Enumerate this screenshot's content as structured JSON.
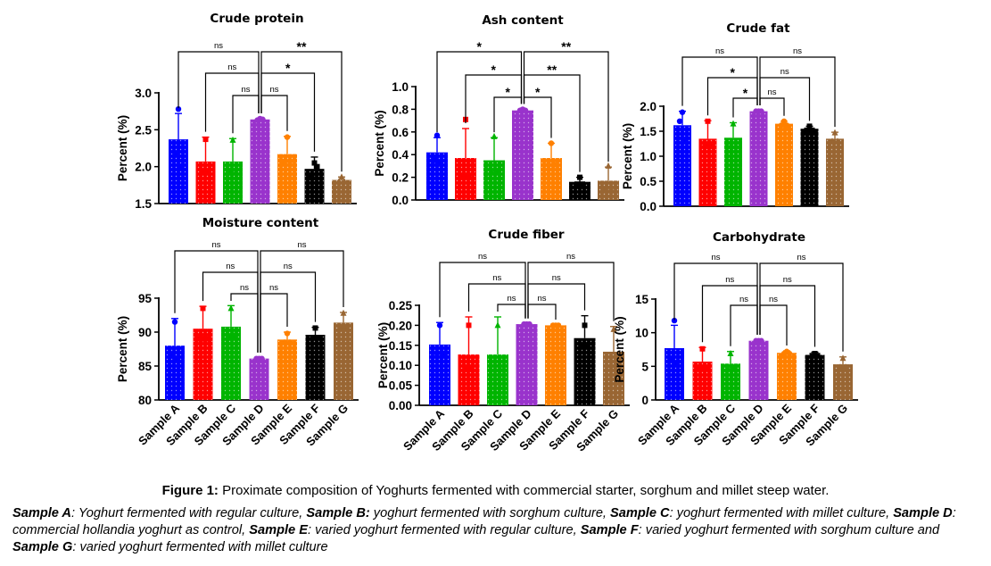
{
  "figure": {
    "caption_label": "Figure 1:",
    "caption_text": " Proximate composition of Yoghurts fermented with commercial starter, sorghum and millet steep water.",
    "legend": [
      {
        "key": "Sample A",
        "sep": ": ",
        "desc": "Yoghurt fermented with regular culture, "
      },
      {
        "key": "Sample B:",
        "sep": " ",
        "desc": "yoghurt fermented with sorghum culture, "
      },
      {
        "key": "Sample C",
        "sep": ": ",
        "desc": "yoghurt fermented with millet culture, "
      },
      {
        "key": "Sample D",
        "sep": ": ",
        "desc": "commercial hollandia yoghurt as control, "
      },
      {
        "key": "Sample E",
        "sep": ": ",
        "desc": "varied yoghurt fermented with regular culture, "
      },
      {
        "key": "Sample F",
        "sep": ": ",
        "desc": "varied yoghurt fermented with sorghum culture and "
      },
      {
        "key": "Sample G",
        "sep": ": ",
        "desc": "varied yoghurt fermented with millet culture"
      }
    ]
  },
  "colors": {
    "Sample A": "#0000ff",
    "Sample B": "#ff0000",
    "Sample C": "#00b400",
    "Sample D": "#9933cc",
    "Sample E": "#ff8000",
    "Sample F": "#000000",
    "Sample G": "#996633"
  },
  "chart_data": [
    {
      "type": "bar",
      "title": "Crude protein",
      "ylabel": "Percent (%)",
      "ylim": [
        1.5,
        3.0
      ],
      "yticks": [
        "1.5",
        "2.0",
        "2.5",
        "3.0"
      ],
      "categories": [
        "Sample A",
        "Sample B",
        "Sample C",
        "Sample D",
        "Sample E",
        "Sample F",
        "Sample G"
      ],
      "show_xticks": false,
      "values": [
        2.37,
        2.07,
        2.07,
        2.64,
        2.17,
        1.97,
        1.82
      ],
      "errors": [
        0.35,
        0.33,
        0.31,
        0.01,
        0.24,
        0.16,
        0.04
      ],
      "points": [
        [
          2.78,
          2.18,
          2.0
        ],
        [
          2.37,
          1.92,
          1.92
        ],
        [
          2.36,
          1.92,
          1.92
        ],
        [
          2.65,
          2.63,
          2.64
        ],
        [
          2.4,
          2.07,
          2.07
        ],
        [
          2.05,
          1.85,
          2.0
        ],
        [
          1.86,
          1.8,
          1.8
        ]
      ],
      "comparisons": [
        {
          "from": 3,
          "to": 0,
          "label": "ns"
        },
        {
          "from": 3,
          "to": 6,
          "label": "**"
        },
        {
          "from": 3,
          "to": 1,
          "label": "ns"
        },
        {
          "from": 3,
          "to": 5,
          "label": "*"
        },
        {
          "from": 3,
          "to": 2,
          "label": "ns"
        },
        {
          "from": 3,
          "to": 4,
          "label": "ns"
        }
      ]
    },
    {
      "type": "bar",
      "title": "Ash content",
      "ylabel": "Percent (%)",
      "ylim": [
        0.0,
        1.0
      ],
      "yticks": [
        "0.0",
        "0.2",
        "0.4",
        "0.6",
        "0.8",
        "1.0"
      ],
      "categories": [
        "Sample A",
        "Sample B",
        "Sample C",
        "Sample D",
        "Sample E",
        "Sample F",
        "Sample G"
      ],
      "show_xticks": false,
      "values": [
        0.42,
        0.37,
        0.35,
        0.79,
        0.37,
        0.16,
        0.17
      ],
      "errors": [
        0.13,
        0.26,
        0.2,
        0.01,
        0.13,
        0.04,
        0.12
      ],
      "points": [
        [
          0.57,
          0.35,
          0.33
        ],
        [
          0.71,
          0.2,
          0.2
        ],
        [
          0.56,
          0.25,
          0.25
        ],
        [
          0.8,
          0.79,
          0.79
        ],
        [
          0.5,
          0.31,
          0.31
        ],
        [
          0.2,
          0.14,
          0.14
        ],
        [
          0.3,
          0.1,
          0.1
        ]
      ],
      "comparisons": [
        {
          "from": 3,
          "to": 0,
          "label": "*"
        },
        {
          "from": 3,
          "to": 6,
          "label": "**"
        },
        {
          "from": 3,
          "to": 1,
          "label": "*"
        },
        {
          "from": 3,
          "to": 5,
          "label": "**"
        },
        {
          "from": 3,
          "to": 2,
          "label": "*"
        },
        {
          "from": 3,
          "to": 4,
          "label": "*"
        }
      ]
    },
    {
      "type": "bar",
      "title": "Crude fat",
      "ylabel": "Percent (%)",
      "ylim": [
        0.0,
        2.0
      ],
      "yticks": [
        "0.0",
        "0.5",
        "1.0",
        "1.5",
        "2.0"
      ],
      "categories": [
        "Sample A",
        "Sample B",
        "Sample C",
        "Sample D",
        "Sample E",
        "Sample F",
        "Sample G"
      ],
      "show_xticks": false,
      "values": [
        1.62,
        1.35,
        1.37,
        1.9,
        1.65,
        1.55,
        1.35
      ],
      "errors": [
        0.28,
        0.36,
        0.3,
        0.01,
        0.05,
        0.05,
        0.13
      ],
      "points": [
        [
          1.88,
          1.7,
          1.3
        ],
        [
          1.7,
          1.2,
          1.2
        ],
        [
          1.65,
          1.2,
          1.2
        ],
        [
          1.9,
          1.9,
          1.9
        ],
        [
          1.7,
          1.62,
          1.62
        ],
        [
          1.6,
          1.52,
          1.52
        ],
        [
          1.47,
          1.3,
          1.3
        ]
      ],
      "comparisons": [
        {
          "from": 3,
          "to": 0,
          "label": "ns"
        },
        {
          "from": 3,
          "to": 6,
          "label": "ns"
        },
        {
          "from": 3,
          "to": 1,
          "label": "*"
        },
        {
          "from": 3,
          "to": 5,
          "label": "ns"
        },
        {
          "from": 3,
          "to": 2,
          "label": "*"
        },
        {
          "from": 3,
          "to": 4,
          "label": "ns"
        }
      ]
    },
    {
      "type": "bar",
      "title": "Moisture content",
      "ylabel": "Percent (%)",
      "ylim": [
        80,
        95
      ],
      "yticks": [
        "80",
        "85",
        "90",
        "95"
      ],
      "categories": [
        "Sample A",
        "Sample B",
        "Sample C",
        "Sample D",
        "Sample E",
        "Sample F",
        "Sample G"
      ],
      "show_xticks": true,
      "values": [
        88.0,
        90.5,
        90.8,
        86.1,
        88.9,
        89.6,
        91.4
      ],
      "errors": [
        4.0,
        3.3,
        3.1,
        0.1,
        1.1,
        1.1,
        1.5
      ],
      "points": [
        [
          91.5,
          86.5,
          86.0
        ],
        [
          93.5,
          89.0,
          89.0
        ],
        [
          93.5,
          89.5,
          89.5
        ],
        [
          86.1,
          86.1,
          86.1
        ],
        [
          89.8,
          88.5,
          88.5
        ],
        [
          90.6,
          89.2,
          89.2
        ],
        [
          92.8,
          90.8,
          90.8
        ]
      ],
      "comparisons": [
        {
          "from": 3,
          "to": 0,
          "label": "ns"
        },
        {
          "from": 3,
          "to": 6,
          "label": "ns"
        },
        {
          "from": 3,
          "to": 1,
          "label": "ns"
        },
        {
          "from": 3,
          "to": 5,
          "label": "ns"
        },
        {
          "from": 3,
          "to": 2,
          "label": "ns"
        },
        {
          "from": 3,
          "to": 4,
          "label": "ns"
        }
      ]
    },
    {
      "type": "bar",
      "title": "Crude fiber",
      "ylabel": "Percent (%)",
      "ylim": [
        0.0,
        0.25
      ],
      "yticks": [
        "0.00",
        "0.05",
        "0.10",
        "0.15",
        "0.20",
        "0.25"
      ],
      "categories": [
        "Sample A",
        "Sample B",
        "Sample C",
        "Sample D",
        "Sample E",
        "Sample F",
        "Sample G"
      ],
      "show_xticks": true,
      "values": [
        0.152,
        0.127,
        0.127,
        0.203,
        0.2,
        0.168,
        0.134
      ],
      "errors": [
        0.055,
        0.094,
        0.094,
        0.001,
        0.001,
        0.056,
        0.063
      ],
      "points": [
        [
          0.2,
          0.13,
          0.13
        ],
        [
          0.2,
          0.09,
          0.09
        ],
        [
          0.2,
          0.09,
          0.09
        ],
        [
          0.203,
          0.203,
          0.203
        ],
        [
          0.2,
          0.2,
          0.2
        ],
        [
          0.2,
          0.15,
          0.15
        ],
        [
          0.19,
          0.1,
          0.1
        ]
      ],
      "comparisons": [
        {
          "from": 3,
          "to": 0,
          "label": "ns"
        },
        {
          "from": 3,
          "to": 6,
          "label": "ns"
        },
        {
          "from": 3,
          "to": 1,
          "label": "ns"
        },
        {
          "from": 3,
          "to": 5,
          "label": "ns"
        },
        {
          "from": 3,
          "to": 2,
          "label": "ns"
        },
        {
          "from": 3,
          "to": 4,
          "label": "ns"
        }
      ]
    },
    {
      "type": "bar",
      "title": "Carbohydrate",
      "ylabel": "Percent (%)",
      "ylim": [
        0,
        15
      ],
      "yticks": [
        "0",
        "5",
        "10",
        "15"
      ],
      "categories": [
        "Sample A",
        "Sample B",
        "Sample C",
        "Sample D",
        "Sample E",
        "Sample F",
        "Sample G"
      ],
      "show_xticks": true,
      "values": [
        7.7,
        5.7,
        5.4,
        8.8,
        7.0,
        6.7,
        5.3
      ],
      "errors": [
        3.4,
        2.1,
        1.8,
        0.1,
        0.3,
        0.4,
        1.1
      ],
      "points": [
        [
          11.8,
          6.0,
          5.5
        ],
        [
          7.6,
          4.8,
          4.8
        ],
        [
          6.9,
          4.7,
          4.7
        ],
        [
          8.8,
          8.8,
          8.8
        ],
        [
          7.2,
          6.9,
          6.9
        ],
        [
          6.9,
          6.6,
          6.6
        ],
        [
          6.2,
          4.9,
          4.9
        ]
      ],
      "comparisons": [
        {
          "from": 3,
          "to": 0,
          "label": "ns"
        },
        {
          "from": 3,
          "to": 6,
          "label": "ns"
        },
        {
          "from": 3,
          "to": 1,
          "label": "ns"
        },
        {
          "from": 3,
          "to": 5,
          "label": "ns"
        },
        {
          "from": 3,
          "to": 2,
          "label": "ns"
        },
        {
          "from": 3,
          "to": 4,
          "label": "ns"
        }
      ]
    }
  ]
}
